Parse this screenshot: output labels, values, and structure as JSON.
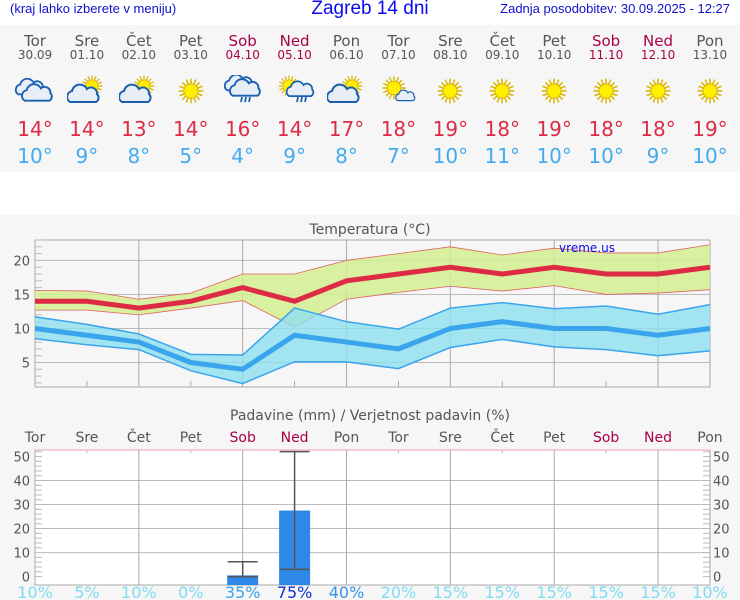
{
  "header": {
    "hint": "(kraj lahko izberete v meniju)",
    "title": "Zagreb 14 dni",
    "updated": "Zadnja posodobitev: 30.09.2025 - 12:27"
  },
  "colors": {
    "max": "#dd2b45",
    "min": "#44aaee",
    "weekend": "#aa0048",
    "bar": "#2f88e8"
  },
  "days": [
    {
      "name": "Tor",
      "date": "30.09",
      "icon": "cloudy-icon",
      "max": "14°",
      "min": "10°",
      "weekend": false
    },
    {
      "name": "Sre",
      "date": "01.10",
      "icon": "partly-cloudy-icon",
      "max": "14°",
      "min": "9°",
      "weekend": false
    },
    {
      "name": "Čet",
      "date": "02.10",
      "icon": "partly-cloudy-icon",
      "max": "13°",
      "min": "8°",
      "weekend": false
    },
    {
      "name": "Pet",
      "date": "03.10",
      "icon": "sun-icon",
      "max": "14°",
      "min": "5°",
      "weekend": false
    },
    {
      "name": "Sob",
      "date": "04.10",
      "icon": "cloud-rain-icon",
      "max": "16°",
      "min": "4°",
      "weekend": true
    },
    {
      "name": "Ned",
      "date": "05.10",
      "icon": "sun-cloud-rain-icon",
      "max": "14°",
      "min": "9°",
      "weekend": true
    },
    {
      "name": "Pon",
      "date": "06.10",
      "icon": "partly-cloudy-icon",
      "max": "17°",
      "min": "8°",
      "weekend": false
    },
    {
      "name": "Tor",
      "date": "07.10",
      "icon": "sun-small-cloud-icon",
      "max": "18°",
      "min": "7°",
      "weekend": false
    },
    {
      "name": "Sre",
      "date": "08.10",
      "icon": "sun-icon",
      "max": "19°",
      "min": "10°",
      "weekend": false
    },
    {
      "name": "Čet",
      "date": "09.10",
      "icon": "sun-icon",
      "max": "18°",
      "min": "11°",
      "weekend": false
    },
    {
      "name": "Pet",
      "date": "10.10",
      "icon": "sun-icon",
      "max": "19°",
      "min": "10°",
      "weekend": false
    },
    {
      "name": "Sob",
      "date": "11.10",
      "icon": "sun-icon",
      "max": "18°",
      "min": "10°",
      "weekend": true
    },
    {
      "name": "Ned",
      "date": "12.10",
      "icon": "sun-icon",
      "max": "18°",
      "min": "9°",
      "weekend": true
    },
    {
      "name": "Pon",
      "date": "13.10",
      "icon": "sun-icon",
      "max": "19°",
      "min": "10°",
      "weekend": false
    }
  ],
  "chart_data": [
    {
      "type": "line",
      "title": "Temperatura (°C)",
      "watermark": "vreme.us",
      "ylim": [
        1.4,
        23
      ],
      "yticks": [
        5,
        10,
        15,
        20
      ],
      "series": [
        {
          "values": [
            14,
            14,
            13,
            14,
            16,
            14,
            17,
            18,
            19,
            18,
            19,
            18,
            18,
            19
          ],
          "band_low": [
            12.7,
            12.7,
            12,
            13,
            14.1,
            10.2,
            14.3,
            15.3,
            16.2,
            15.5,
            16.3,
            15,
            15.2,
            15.7
          ],
          "band_high": [
            15.6,
            15.5,
            14.3,
            15.2,
            18,
            18,
            20,
            21,
            22,
            20.8,
            21.8,
            21.1,
            21.1,
            22.3
          ]
        },
        {
          "values": [
            10,
            9,
            8,
            5,
            4,
            9,
            8,
            7,
            10,
            11,
            10,
            10,
            9,
            10
          ],
          "band_low": [
            8.5,
            7.6,
            6.9,
            3.8,
            1.9,
            5.1,
            5.1,
            4.1,
            7.2,
            8.4,
            7.3,
            6.9,
            6,
            6.7
          ],
          "band_high": [
            11.7,
            10.6,
            9.2,
            6.2,
            6.1,
            13,
            11,
            9.9,
            13,
            13.8,
            12.9,
            13.3,
            12.1,
            13.5
          ]
        }
      ]
    },
    {
      "type": "bar",
      "title": "Padavine (mm) / Verjetnost padavin (%)",
      "ylim": [
        -3.5,
        52.7
      ],
      "yticks": [
        0,
        10,
        20,
        30,
        40,
        50
      ],
      "categories": [
        "Tor",
        "Sre",
        "Čet",
        "Pet",
        "Sob",
        "Ned",
        "Pon",
        "Tor",
        "Sre",
        "Čet",
        "Pet",
        "Sob",
        "Ned",
        "Pon"
      ],
      "values": [
        0,
        0,
        0,
        0,
        0.5,
        27.5,
        0,
        0,
        0,
        0,
        0,
        0,
        0,
        0
      ],
      "error_low": [
        null,
        null,
        null,
        null,
        0,
        3,
        null,
        null,
        null,
        null,
        null,
        null,
        null,
        null
      ],
      "error_high": [
        null,
        null,
        null,
        null,
        6.2,
        52,
        null,
        null,
        null,
        null,
        null,
        null,
        null,
        null
      ],
      "probability": [
        "10%",
        "5%",
        "10%",
        "0%",
        "35%",
        "75%",
        "40%",
        "20%",
        "15%",
        "15%",
        "15%",
        "15%",
        "15%",
        "10%"
      ],
      "probability_colors": [
        "#80dcf2",
        "#80dcf2",
        "#80dcf2",
        "#80dcf2",
        "#3aa4ec",
        "#1030d0",
        "#3a94e6",
        "#80dcf2",
        "#80dcf2",
        "#80dcf2",
        "#80dcf2",
        "#80dcf2",
        "#80dcf2",
        "#80dcf2"
      ]
    }
  ]
}
